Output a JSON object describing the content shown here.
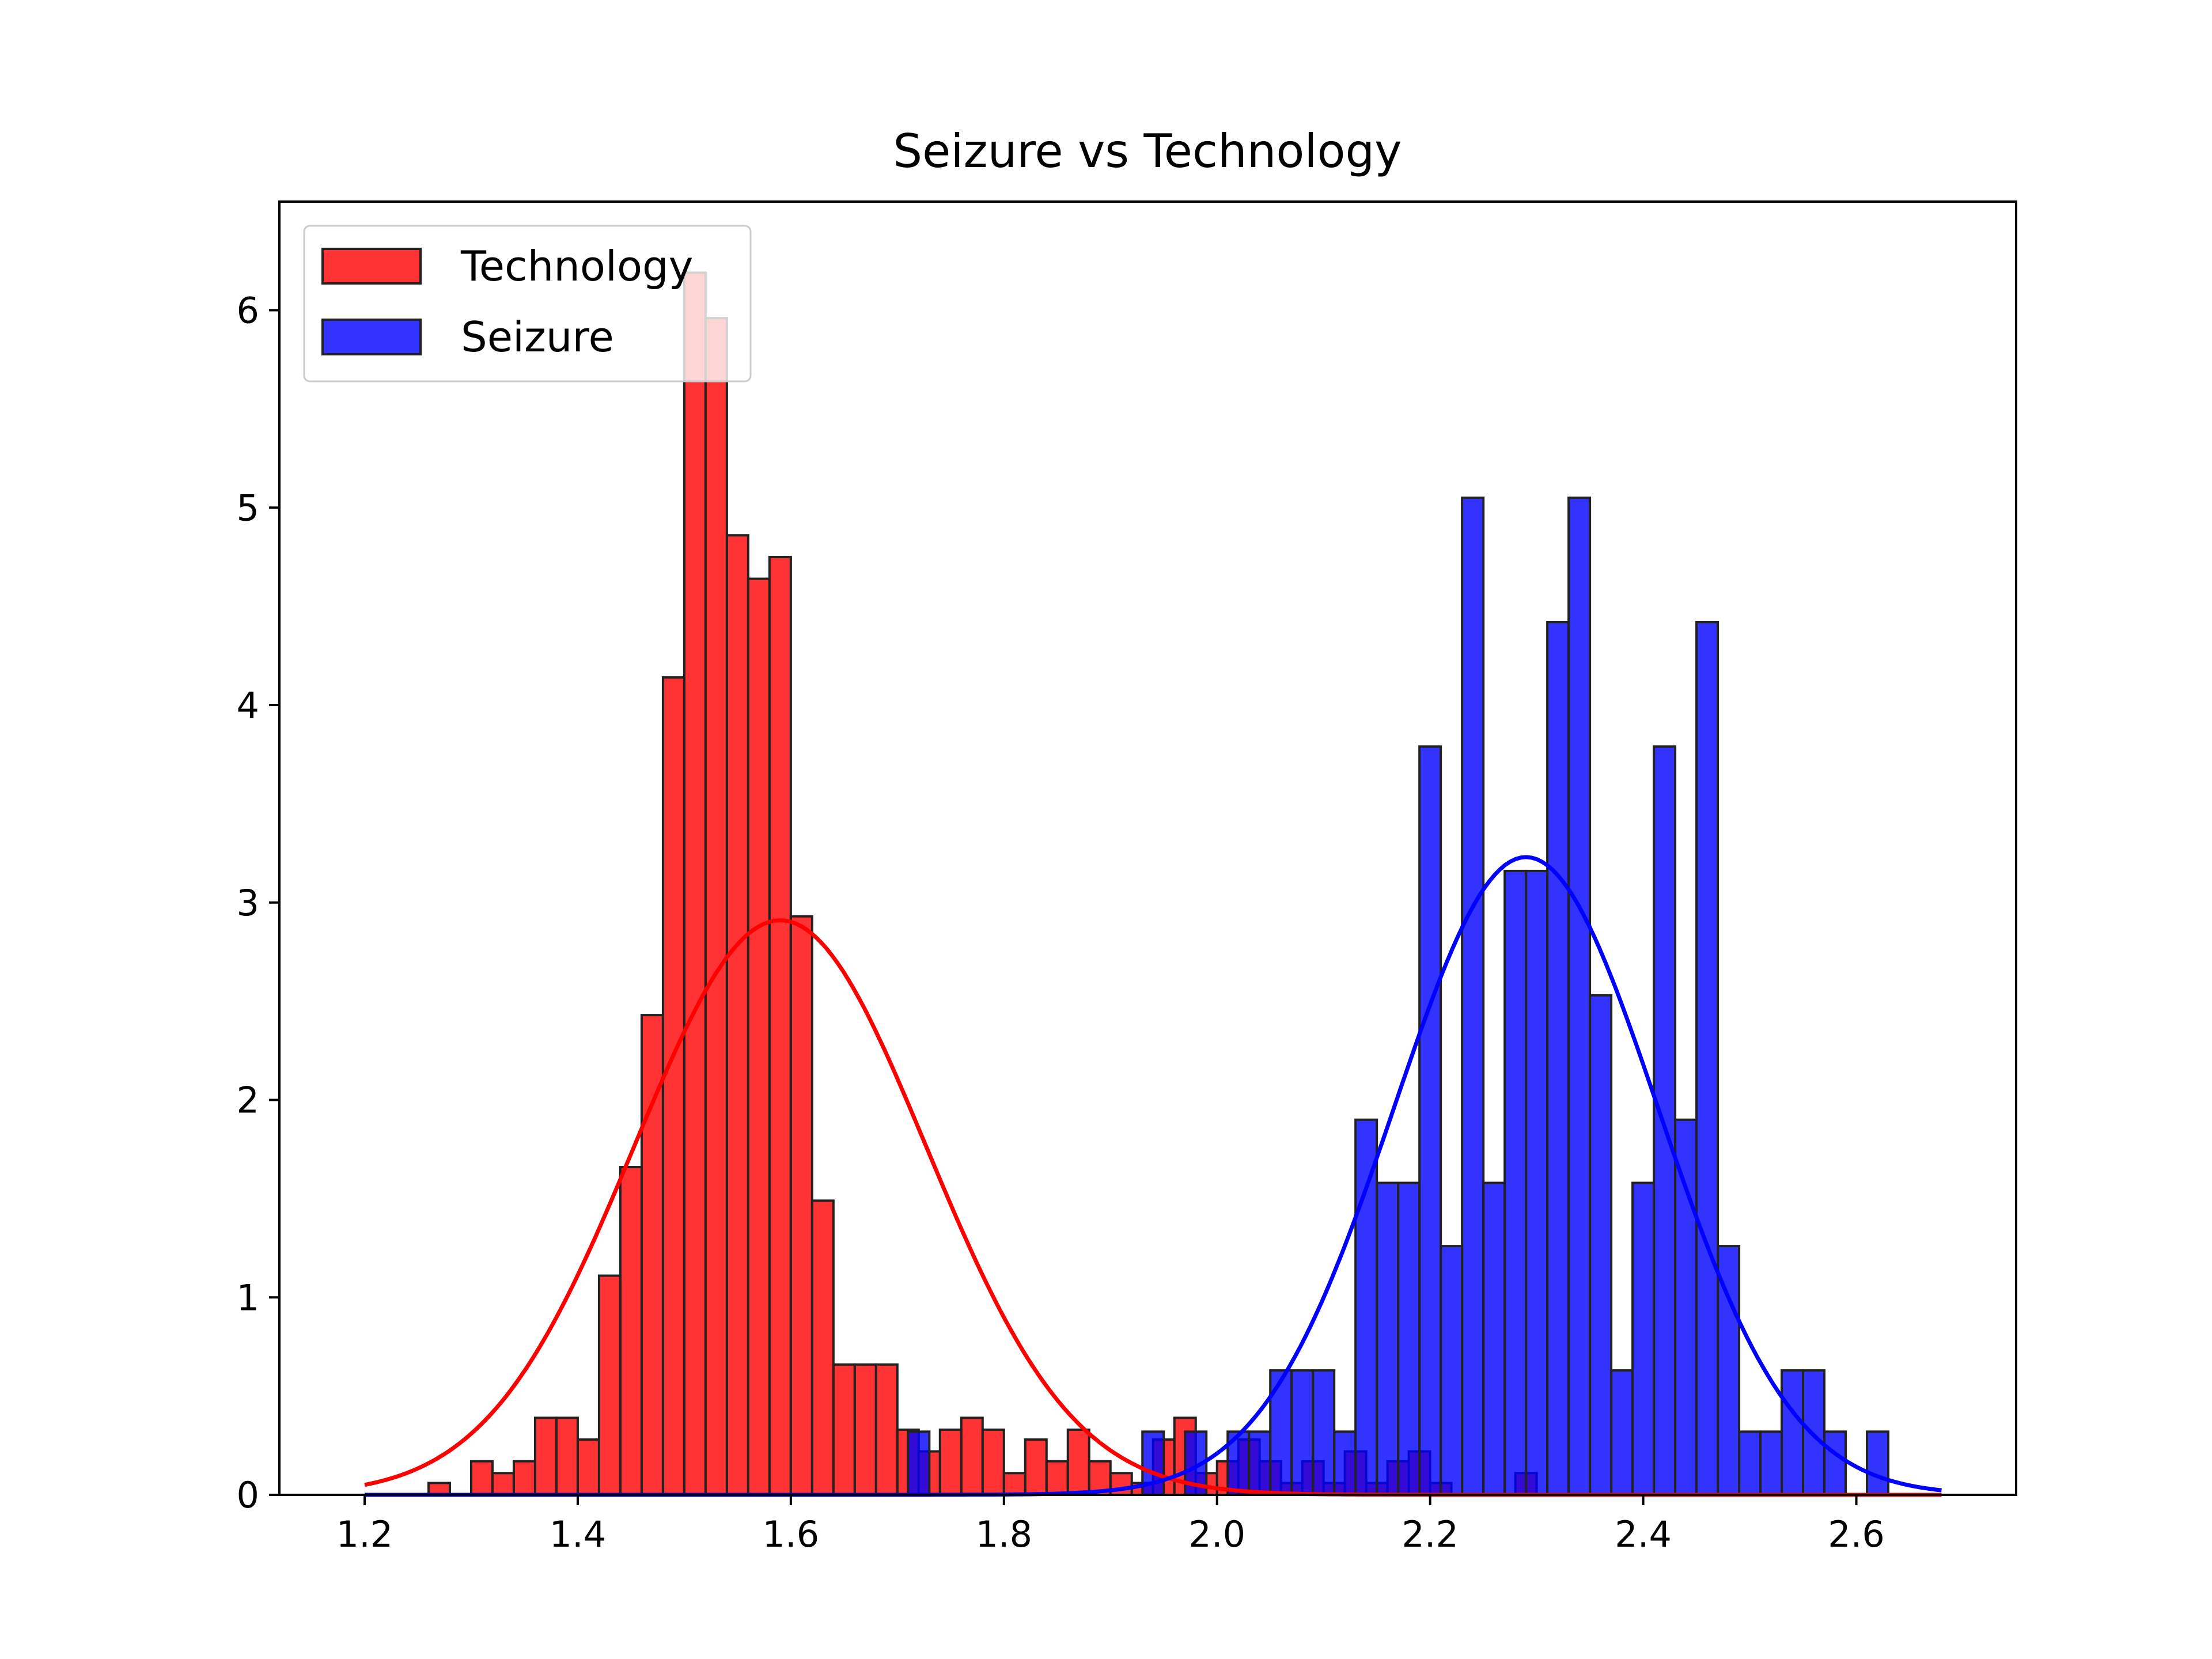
{
  "colors": {
    "technology": "#ff0000",
    "seizure": "#0000ff",
    "edge": "#222222",
    "background": "#ffffff"
  },
  "chart_data": {
    "type": "bar",
    "title": "Seizure vs Technology",
    "xlabel": "",
    "ylabel": "",
    "xlim": [
      1.12,
      2.75
    ],
    "ylim": [
      0,
      6.55
    ],
    "xticks": [
      "1.2",
      "1.4",
      "1.6",
      "1.8",
      "2.0",
      "2.2",
      "2.4",
      "2.6"
    ],
    "yticks": [
      "0",
      "1",
      "2",
      "3",
      "4",
      "5",
      "6"
    ],
    "grid": false,
    "legend": {
      "position": "upper left",
      "entries": [
        "Technology",
        "Seizure"
      ]
    },
    "bin_width": 0.02,
    "series": [
      {
        "name": "Technology",
        "kind": "histogram",
        "color": "#ff0000",
        "bins": [
          [
            1.27,
            0.06
          ],
          [
            1.31,
            0.17
          ],
          [
            1.33,
            0.11
          ],
          [
            1.35,
            0.17
          ],
          [
            1.37,
            0.39
          ],
          [
            1.39,
            0.39
          ],
          [
            1.41,
            0.28
          ],
          [
            1.43,
            1.11
          ],
          [
            1.45,
            1.66
          ],
          [
            1.47,
            2.43
          ],
          [
            1.49,
            4.14
          ],
          [
            1.51,
            6.19
          ],
          [
            1.53,
            5.96
          ],
          [
            1.55,
            4.86
          ],
          [
            1.57,
            4.64
          ],
          [
            1.59,
            4.75
          ],
          [
            1.61,
            2.93
          ],
          [
            1.63,
            1.49
          ],
          [
            1.65,
            0.66
          ],
          [
            1.67,
            0.66
          ],
          [
            1.69,
            0.66
          ],
          [
            1.71,
            0.33
          ],
          [
            1.73,
            0.22
          ],
          [
            1.75,
            0.33
          ],
          [
            1.77,
            0.39
          ],
          [
            1.79,
            0.33
          ],
          [
            1.81,
            0.11
          ],
          [
            1.83,
            0.28
          ],
          [
            1.85,
            0.17
          ],
          [
            1.87,
            0.33
          ],
          [
            1.89,
            0.17
          ],
          [
            1.91,
            0.11
          ],
          [
            1.93,
            0.06
          ],
          [
            1.95,
            0.28
          ],
          [
            1.97,
            0.39
          ],
          [
            1.99,
            0.11
          ],
          [
            2.01,
            0.17
          ],
          [
            2.03,
            0.28
          ],
          [
            2.05,
            0.17
          ],
          [
            2.07,
            0.06
          ],
          [
            2.09,
            0.17
          ],
          [
            2.11,
            0.06
          ],
          [
            2.13,
            0.22
          ],
          [
            2.15,
            0.06
          ],
          [
            2.17,
            0.17
          ],
          [
            2.19,
            0.22
          ],
          [
            2.21,
            0.06
          ],
          [
            2.29,
            0.11
          ]
        ],
        "fit": {
          "mean": 1.59,
          "std": 0.137,
          "peak": 2.91,
          "x_range": [
            1.2,
            2.68
          ]
        }
      },
      {
        "name": "Seizure",
        "kind": "histogram",
        "color": "#0000ff",
        "bins": [
          [
            1.72,
            0.32
          ],
          [
            1.94,
            0.32
          ],
          [
            1.98,
            0.32
          ],
          [
            2.02,
            0.32
          ],
          [
            2.04,
            0.32
          ],
          [
            2.06,
            0.63
          ],
          [
            2.08,
            0.63
          ],
          [
            2.1,
            0.63
          ],
          [
            2.12,
            0.32
          ],
          [
            2.14,
            1.9
          ],
          [
            2.16,
            1.58
          ],
          [
            2.18,
            1.58
          ],
          [
            2.2,
            3.79
          ],
          [
            2.22,
            1.26
          ],
          [
            2.24,
            5.05
          ],
          [
            2.26,
            1.58
          ],
          [
            2.28,
            3.16
          ],
          [
            2.3,
            3.16
          ],
          [
            2.32,
            4.42
          ],
          [
            2.34,
            5.05
          ],
          [
            2.36,
            2.53
          ],
          [
            2.38,
            0.63
          ],
          [
            2.4,
            1.58
          ],
          [
            2.42,
            3.79
          ],
          [
            2.44,
            1.9
          ],
          [
            2.46,
            4.42
          ],
          [
            2.48,
            1.26
          ],
          [
            2.5,
            0.32
          ],
          [
            2.52,
            0.32
          ],
          [
            2.54,
            0.63
          ],
          [
            2.56,
            0.63
          ],
          [
            2.58,
            0.32
          ],
          [
            2.62,
            0.32
          ]
        ],
        "fit": {
          "mean": 2.29,
          "std": 0.124,
          "peak": 3.23,
          "x_range": [
            1.2,
            2.68
          ]
        }
      }
    ]
  }
}
